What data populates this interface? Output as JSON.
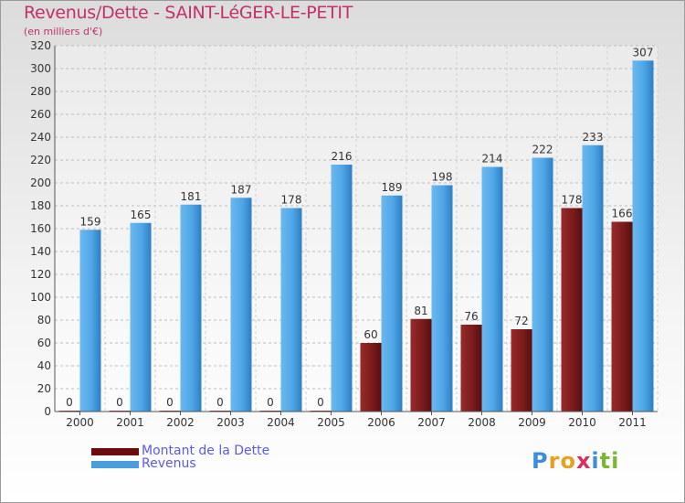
{
  "title": "Revenus/Dette - SAINT-LéGER-LE-PETIT",
  "subtitle": "(en milliers d'€)",
  "chart_data": {
    "type": "bar",
    "title": "Revenus/Dette - SAINT-LéGER-LE-PETIT",
    "ylabel": "(en milliers d'€)",
    "xlabel": "",
    "ylim": [
      0,
      320
    ],
    "ytick_step": 20,
    "grid": true,
    "legend_position": "bottom-left",
    "categories": [
      "2000",
      "2001",
      "2002",
      "2003",
      "2004",
      "2005",
      "2006",
      "2007",
      "2008",
      "2009",
      "2010",
      "2011"
    ],
    "series": [
      {
        "name": "Montant de la Dette",
        "color": "#7a1c1c",
        "values": [
          0,
          0,
          0,
          0,
          0,
          0,
          60,
          81,
          76,
          72,
          178,
          166
        ]
      },
      {
        "name": "Revenus",
        "color": "#4fa6e6",
        "values": [
          159,
          165,
          181,
          187,
          178,
          216,
          189,
          198,
          214,
          222,
          233,
          307
        ]
      }
    ]
  },
  "legend": {
    "dette_label": "Montant de la Dette",
    "revenus_label": "Revenus",
    "dette_color": "#6b0d0d",
    "revenus_color": "#4a9ee0"
  },
  "logo": {
    "letters": [
      "P",
      "r",
      "o",
      "x",
      "i",
      "t",
      "i"
    ],
    "colors": [
      "#3b8fd8",
      "#e8a020",
      "#e8a020",
      "#d83060",
      "#3b8fd8",
      "#7ab830",
      "#7ab830"
    ]
  }
}
